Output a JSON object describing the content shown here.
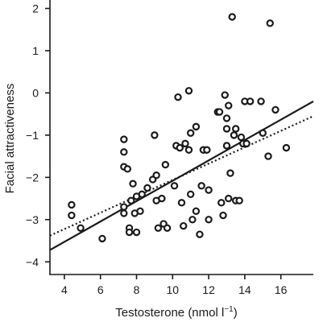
{
  "chart_data": {
    "type": "scatter",
    "title": "",
    "xlabel": "Testosterone (nmol l",
    "xlabel_superscript": "−1",
    "xlabel_close": ")",
    "ylabel": "Facial attractiveness",
    "xlim": [
      3.2,
      17.8
    ],
    "ylim": [
      -4.3,
      2.2
    ],
    "x_ticks": [
      4,
      6,
      8,
      10,
      12,
      14,
      16
    ],
    "y_ticks": [
      2,
      1,
      0,
      -1,
      -2,
      -3,
      -4
    ],
    "x_tick_labels": [
      "4",
      "6",
      "8",
      "10",
      "12",
      "14",
      "16"
    ],
    "y_tick_labels": [
      "2",
      "1",
      "0",
      "−1",
      "−2",
      "−3",
      "−4"
    ],
    "grid": false,
    "legend": "none",
    "marker": "open-circle",
    "marker_color": "#1a1a1a",
    "points": [
      {
        "x": 4.4,
        "y": -2.65
      },
      {
        "x": 4.4,
        "y": -2.9
      },
      {
        "x": 4.9,
        "y": -3.2
      },
      {
        "x": 6.1,
        "y": -3.45
      },
      {
        "x": 7.3,
        "y": -1.1
      },
      {
        "x": 7.3,
        "y": -1.4
      },
      {
        "x": 7.3,
        "y": -1.75
      },
      {
        "x": 7.5,
        "y": -1.8
      },
      {
        "x": 7.3,
        "y": -2.7
      },
      {
        "x": 7.3,
        "y": -2.85
      },
      {
        "x": 7.6,
        "y": -3.2
      },
      {
        "x": 7.6,
        "y": -3.3
      },
      {
        "x": 7.7,
        "y": -2.55
      },
      {
        "x": 7.8,
        "y": -2.15
      },
      {
        "x": 8.0,
        "y": -2.45
      },
      {
        "x": 7.9,
        "y": -2.85
      },
      {
        "x": 8.0,
        "y": -3.3
      },
      {
        "x": 8.2,
        "y": -2.8
      },
      {
        "x": 8.3,
        "y": -2.4
      },
      {
        "x": 8.6,
        "y": -2.25
      },
      {
        "x": 8.9,
        "y": -2.05
      },
      {
        "x": 9.0,
        "y": -1.0
      },
      {
        "x": 9.1,
        "y": -1.95
      },
      {
        "x": 9.1,
        "y": -2.55
      },
      {
        "x": 9.2,
        "y": -3.2
      },
      {
        "x": 9.4,
        "y": -2.5
      },
      {
        "x": 9.5,
        "y": -3.1
      },
      {
        "x": 9.6,
        "y": -1.7
      },
      {
        "x": 9.7,
        "y": -3.2
      },
      {
        "x": 10.1,
        "y": -2.2
      },
      {
        "x": 10.2,
        "y": -1.25
      },
      {
        "x": 10.3,
        "y": -0.1
      },
      {
        "x": 10.4,
        "y": -1.3
      },
      {
        "x": 10.5,
        "y": -2.6
      },
      {
        "x": 10.6,
        "y": -3.15
      },
      {
        "x": 10.7,
        "y": -1.2
      },
      {
        "x": 10.9,
        "y": 0.05
      },
      {
        "x": 10.9,
        "y": -1.35
      },
      {
        "x": 11.0,
        "y": -0.95
      },
      {
        "x": 11.0,
        "y": -2.4
      },
      {
        "x": 11.1,
        "y": -3.0
      },
      {
        "x": 11.3,
        "y": -0.8
      },
      {
        "x": 11.3,
        "y": -2.8
      },
      {
        "x": 11.5,
        "y": -3.35
      },
      {
        "x": 11.6,
        "y": -2.2
      },
      {
        "x": 11.7,
        "y": -1.35
      },
      {
        "x": 11.9,
        "y": -1.35
      },
      {
        "x": 12.0,
        "y": -2.3
      },
      {
        "x": 12.0,
        "y": -3.0
      },
      {
        "x": 12.5,
        "y": -0.45
      },
      {
        "x": 12.6,
        "y": -0.45
      },
      {
        "x": 12.7,
        "y": -2.6
      },
      {
        "x": 12.8,
        "y": -2.9
      },
      {
        "x": 12.9,
        "y": -0.05
      },
      {
        "x": 13.0,
        "y": -0.6
      },
      {
        "x": 13.0,
        "y": -0.85
      },
      {
        "x": 13.0,
        "y": -1.25
      },
      {
        "x": 13.1,
        "y": -0.3
      },
      {
        "x": 13.1,
        "y": -2.5
      },
      {
        "x": 13.2,
        "y": -1.9
      },
      {
        "x": 13.3,
        "y": 1.8
      },
      {
        "x": 13.4,
        "y": -1.0
      },
      {
        "x": 13.5,
        "y": -0.85
      },
      {
        "x": 13.5,
        "y": -2.55
      },
      {
        "x": 13.7,
        "y": -2.55
      },
      {
        "x": 13.8,
        "y": -1.05
      },
      {
        "x": 13.9,
        "y": -1.2
      },
      {
        "x": 14.0,
        "y": -0.2
      },
      {
        "x": 14.1,
        "y": -1.2
      },
      {
        "x": 14.3,
        "y": -0.2
      },
      {
        "x": 14.9,
        "y": -0.2
      },
      {
        "x": 15.0,
        "y": -0.95
      },
      {
        "x": 15.3,
        "y": -1.5
      },
      {
        "x": 15.4,
        "y": 1.65
      },
      {
        "x": 15.7,
        "y": -0.4
      },
      {
        "x": 16.3,
        "y": -1.3
      }
    ],
    "lines": [
      {
        "style": "solid",
        "x": [
          3.2,
          17.8
        ],
        "y": [
          -3.72,
          -0.2
        ]
      },
      {
        "style": "dotted",
        "x": [
          3.2,
          17.8
        ],
        "y": [
          -3.38,
          -0.55
        ]
      }
    ]
  }
}
